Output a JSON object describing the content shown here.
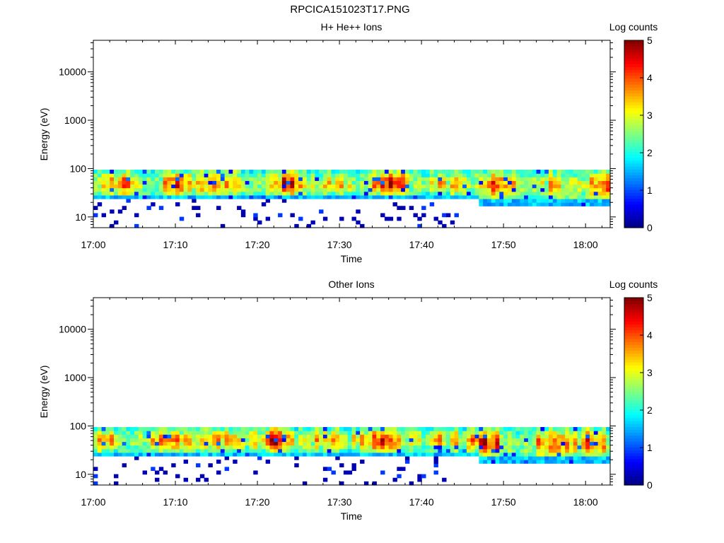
{
  "title": "RPCICA151023T17.PNG",
  "chart_data": [
    {
      "type": "heatmap",
      "title": "H+ He++ Ions",
      "xlabel": "Time",
      "ylabel": "Energy (eV)",
      "x_ticks": [
        "17:00",
        "17:10",
        "17:20",
        "17:30",
        "17:40",
        "17:50",
        "18:00"
      ],
      "xlim_minutes": [
        0,
        63
      ],
      "y_scale": "log",
      "y_ticks": [
        "10",
        "100",
        "1000",
        "10000"
      ],
      "ylim": [
        6,
        45000
      ],
      "colorbar": {
        "label": "Log counts",
        "min": 0,
        "max": 5,
        "ticks": [
          "0",
          "1",
          "2",
          "3",
          "4",
          "5"
        ]
      },
      "band_top_ev": 95,
      "band_bottom_ev": 22,
      "band_bottom_ev_late": 18,
      "noise_cutoff_minute": 45,
      "peak_log_counts": 4.3,
      "seed": 7
    },
    {
      "type": "heatmap",
      "title": "Other Ions",
      "xlabel": "Time",
      "ylabel": "Energy (eV)",
      "x_ticks": [
        "17:00",
        "17:10",
        "17:20",
        "17:30",
        "17:40",
        "17:50",
        "18:00"
      ],
      "xlim_minutes": [
        0,
        63
      ],
      "y_scale": "log",
      "y_ticks": [
        "10",
        "100",
        "1000",
        "10000"
      ],
      "ylim": [
        6,
        45000
      ],
      "colorbar": {
        "label": "Log counts",
        "min": 0,
        "max": 5,
        "ticks": [
          "0",
          "1",
          "2",
          "3",
          "4",
          "5"
        ]
      },
      "band_top_ev": 95,
      "band_bottom_ev": 24,
      "band_bottom_ev_late": 18,
      "noise_cutoff_minute": 43,
      "peak_log_counts": 4.4,
      "seed": 19
    }
  ]
}
